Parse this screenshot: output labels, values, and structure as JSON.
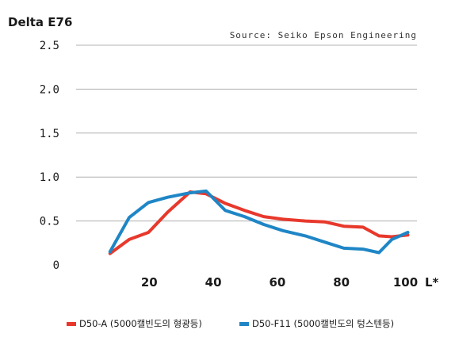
{
  "chart_data": {
    "type": "line",
    "title": "",
    "source": "Source: Seiko Epson Engineering",
    "ylabel": "Delta E76",
    "xlabel": "L*",
    "xlim": [
      0,
      100
    ],
    "ylim": [
      0,
      2.5
    ],
    "yticks": [
      0,
      0.5,
      1.0,
      1.5,
      2.0,
      2.5
    ],
    "ytick_labels": [
      "0",
      "0.5",
      "1.0",
      "1.5",
      "2.0",
      "2.5"
    ],
    "xticks": [
      20,
      40,
      60,
      80,
      100
    ],
    "xtick_labels": [
      "20",
      "40",
      "60",
      "80",
      "100"
    ],
    "grid": true,
    "legend_position": "bottom",
    "series": [
      {
        "name": "D50-A (5000캘빈도의 형광등)",
        "color": "#e8382c",
        "x": [
          7,
          13,
          19,
          25,
          32,
          37,
          43,
          49,
          55,
          61,
          68,
          74,
          80,
          86,
          91,
          95,
          100
        ],
        "y": [
          0.13,
          0.29,
          0.37,
          0.6,
          0.83,
          0.81,
          0.7,
          0.62,
          0.55,
          0.52,
          0.5,
          0.49,
          0.44,
          0.43,
          0.33,
          0.32,
          0.34
        ]
      },
      {
        "name": "D50-F11 (5000캘빈도의 텅스텐등)",
        "color": "#1f86c6",
        "x": [
          7,
          13,
          19,
          25,
          32,
          37,
          43,
          49,
          55,
          61,
          68,
          74,
          80,
          86,
          91,
          95,
          100
        ],
        "y": [
          0.15,
          0.54,
          0.71,
          0.77,
          0.82,
          0.84,
          0.62,
          0.55,
          0.46,
          0.39,
          0.33,
          0.26,
          0.19,
          0.18,
          0.14,
          0.29,
          0.37
        ]
      }
    ]
  }
}
